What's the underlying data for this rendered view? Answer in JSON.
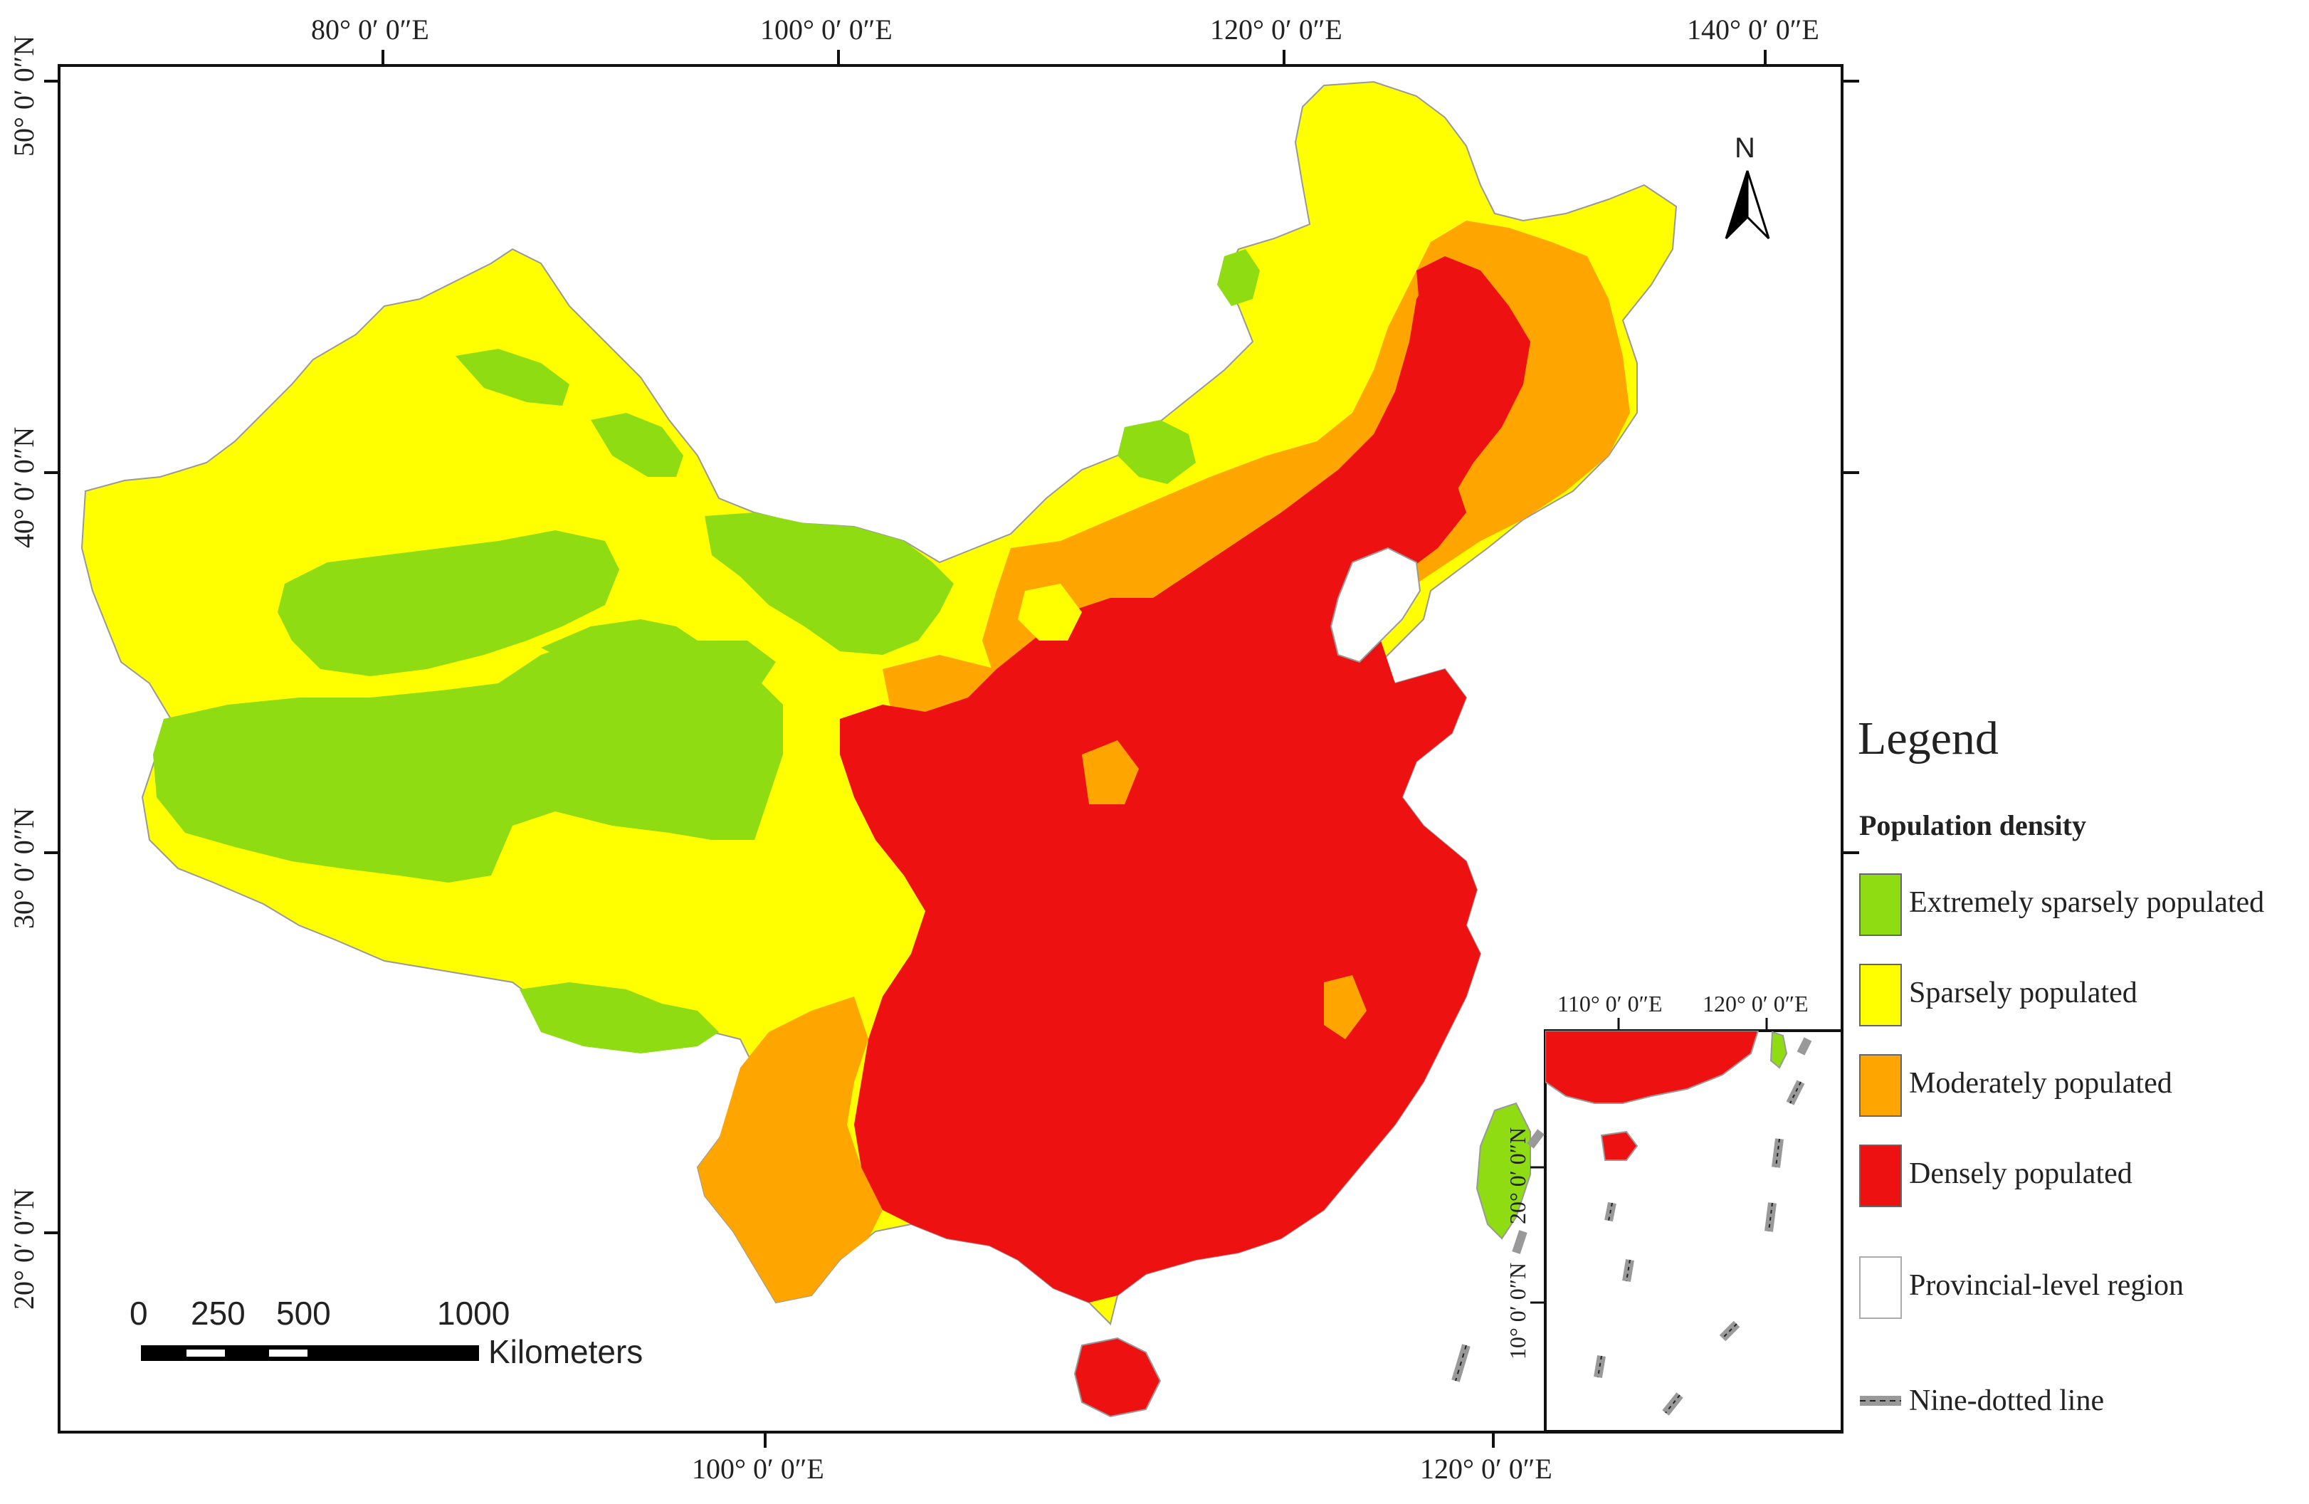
{
  "map": {
    "graticule": {
      "top_lon": [
        "80° 0′ 0″E",
        "100° 0′ 0″E",
        "120° 0′ 0″E",
        "140° 0′ 0″E"
      ],
      "left_lat": [
        "50° 0′ 0″N",
        "40° 0′ 0″N",
        "30° 0′ 0″N",
        "20° 0′ 0″N"
      ],
      "bottom_lon": [
        "100° 0′ 0″E",
        "120° 0′ 0″E"
      ]
    },
    "north_arrow": "N",
    "scale_bar": {
      "ticks": [
        "0",
        "250",
        "500",
        "1000"
      ],
      "unit": "Kilometers"
    },
    "inset": {
      "top_lon": [
        "110° 0′ 0″E",
        "120° 0′ 0″E"
      ],
      "left_lat": [
        "20° 0′ 0″N",
        "10° 0′ 0″N"
      ]
    }
  },
  "legend": {
    "title": "Legend",
    "subtitle": "Population density",
    "items": [
      {
        "label": "Extremely sparsely populated",
        "color": "#8fdc12"
      },
      {
        "label": "Sparsely populated",
        "color": "#ffff00"
      },
      {
        "label": "Moderately populated",
        "color": "#ffa500"
      },
      {
        "label": "Densely populated",
        "color": "#ee1111"
      },
      {
        "label": "Provincial-level region",
        "color": "#ffffff"
      },
      {
        "label": "Nine-dotted line",
        "color": "#999999"
      }
    ]
  }
}
